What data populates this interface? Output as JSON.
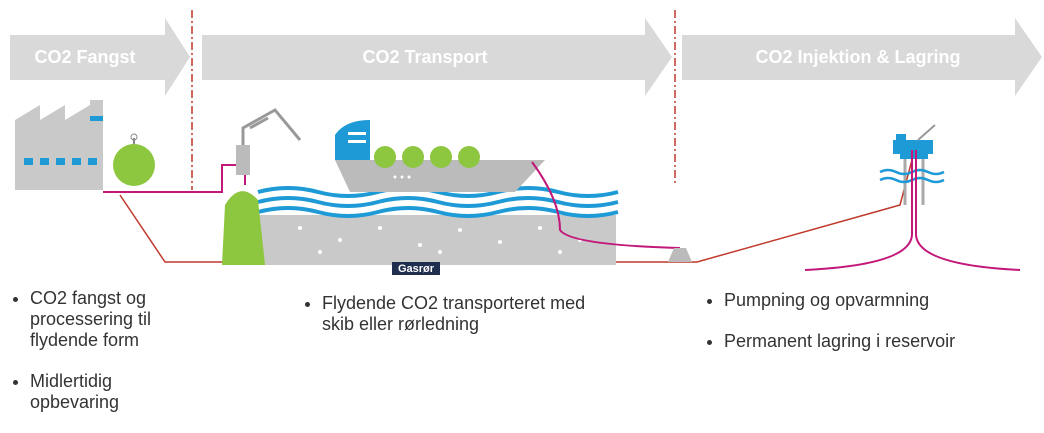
{
  "stages": [
    {
      "title": "CO2 Fangst",
      "bullets": [
        "CO2 fangst og processering til flydende form",
        "Midlertidig opbevaring"
      ]
    },
    {
      "title": "CO2 Transport",
      "bullets": [
        "Flydende CO2 transporteret med skib eller rørledning"
      ]
    },
    {
      "title": "CO2 Injektion & Lagring",
      "bullets": [
        "Pumpning og opvarmning",
        "Permanent lagring i reservoir"
      ]
    }
  ],
  "pipe_label": "Gasrør"
}
